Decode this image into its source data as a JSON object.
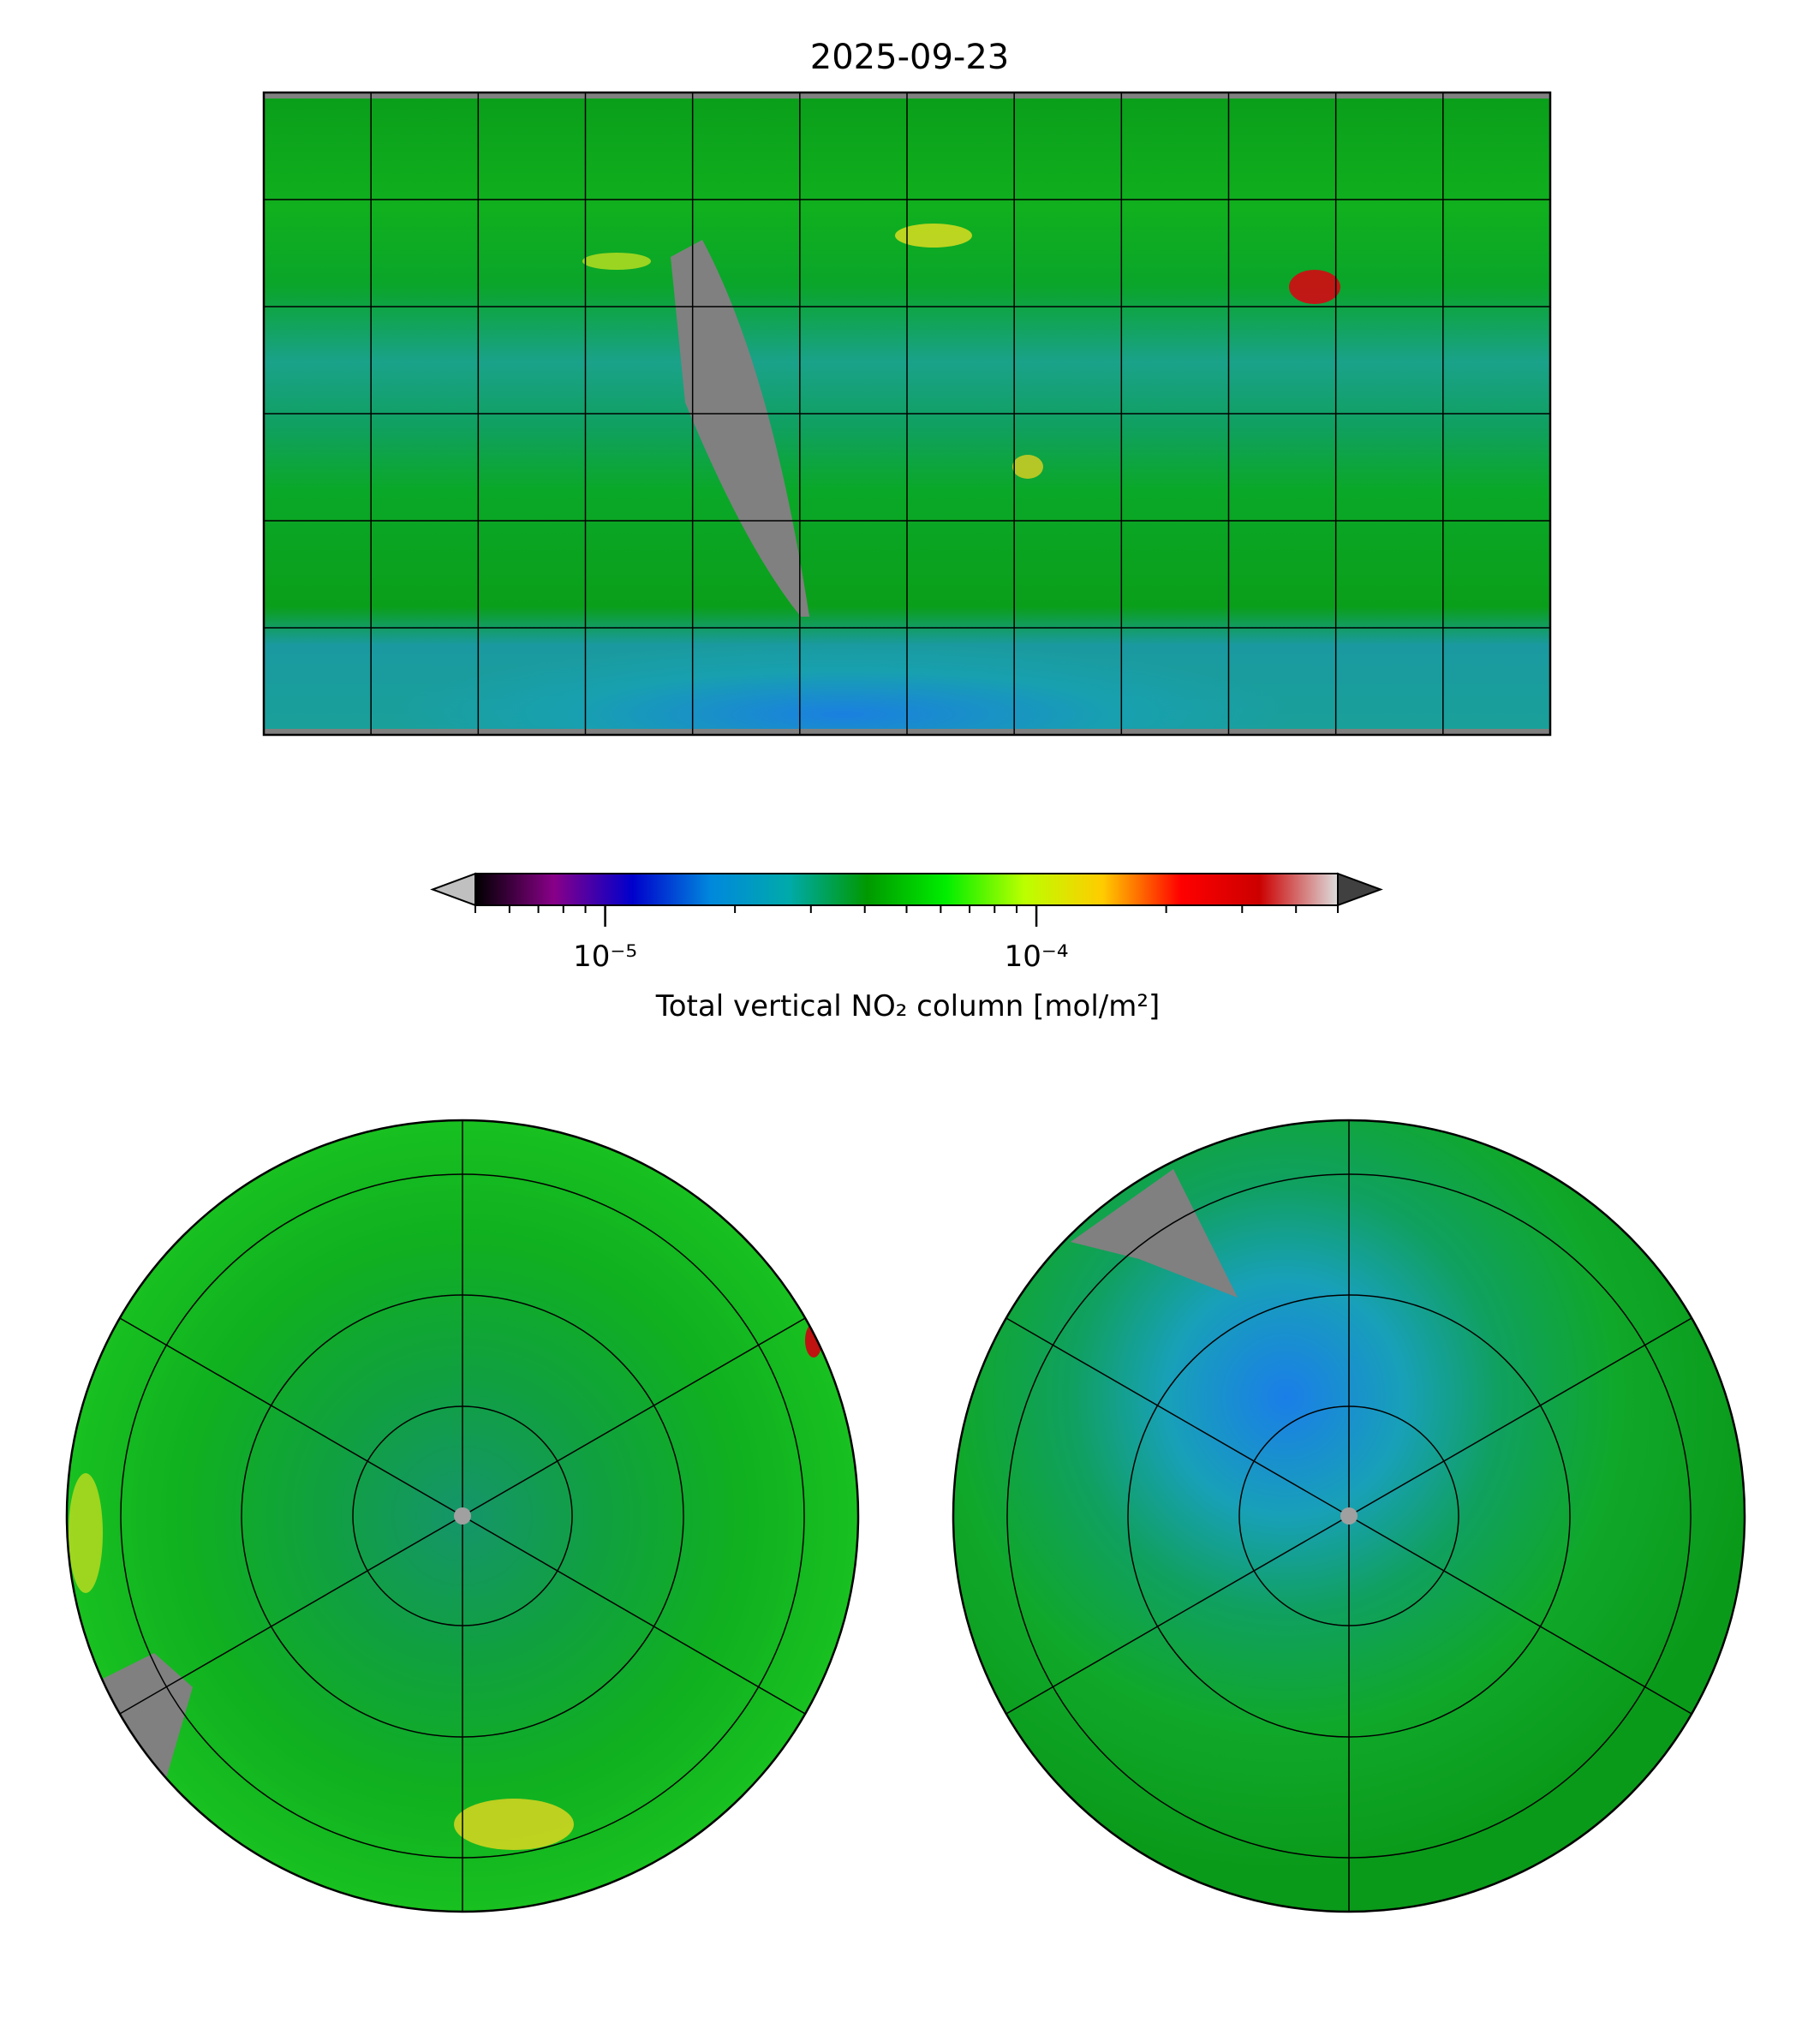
{
  "chart_data": {
    "type": "heatmap",
    "title": "2025-09-23",
    "panels": [
      "global plate carree map",
      "north polar stereographic map",
      "south polar stereographic map"
    ],
    "colorbar": {
      "label": "Total vertical NO₂ column [mol/m²]",
      "scale": "log",
      "range": [
        5e-06,
        0.0005
      ],
      "extend": "both",
      "major_ticks": [
        1e-05,
        0.0001
      ],
      "major_tick_labels": [
        "10⁻⁵",
        "10⁻⁴"
      ],
      "minor_ticks": [
        5e-06,
        6e-06,
        7e-06,
        8e-06,
        9e-06,
        2e-05,
        3e-05,
        4e-05,
        5e-05,
        6e-05,
        7e-05,
        8e-05,
        9e-05,
        0.0002,
        0.0003,
        0.0004,
        0.0005
      ],
      "colors": [
        "#000000",
        "#880088",
        "#0000cc",
        "#0088dd",
        "#00aaaa",
        "#009900",
        "#00ee00",
        "#bbff00",
        "#ffcc00",
        "#ff0000",
        "#cc0000",
        "#dddddd"
      ],
      "under_color": "#c0c0c0",
      "over_color": "#404040"
    },
    "map_grid": {
      "lon_step_deg": 30,
      "lat_step_deg": 30
    },
    "no_data_color": "#808080"
  }
}
